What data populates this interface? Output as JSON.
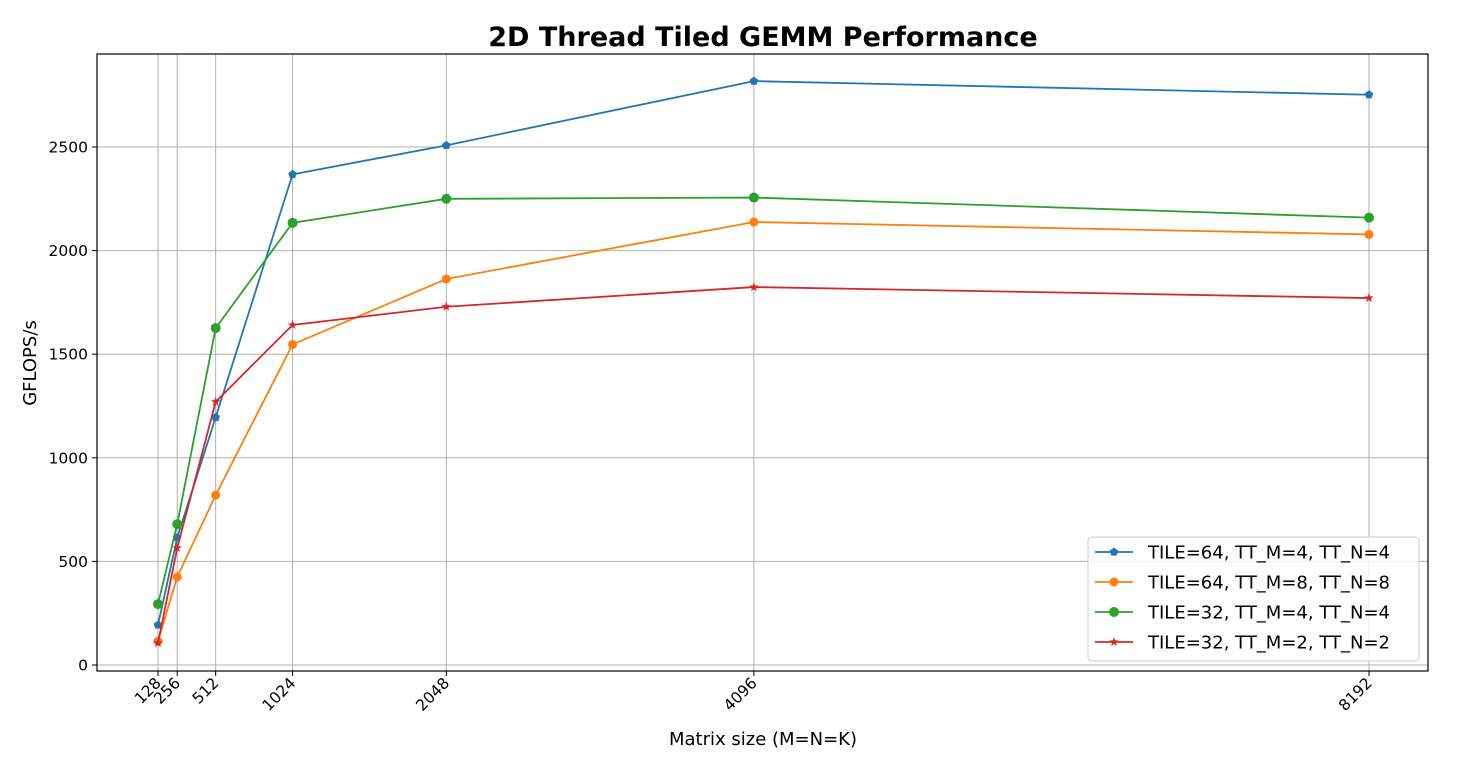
{
  "chart_data": {
    "type": "line",
    "title": "2D Thread Tiled GEMM Performance",
    "xlabel": "Matrix size (M=N=K)",
    "ylabel": "GFLOPS/s",
    "x": [
      128,
      256,
      512,
      1024,
      2048,
      4096,
      8192
    ],
    "x_tick_labels": [
      "128",
      "256",
      "512",
      "1024",
      "2048",
      "4096",
      "8192"
    ],
    "y_ticks": [
      0,
      500,
      1000,
      1500,
      2000,
      2500
    ],
    "y_tick_labels": [
      "0",
      "500",
      "1000",
      "1500",
      "2000",
      "2500"
    ],
    "xlim": [
      -200,
      8584
    ],
    "ylim": [
      -30,
      2950
    ],
    "grid": true,
    "legend_position": "lower right",
    "series": [
      {
        "name": "TILE=64, TT_M=4, TT_N=4",
        "color": "#1f77b4",
        "marker": "pentagon",
        "values": [
          193,
          615,
          1195,
          2368,
          2508,
          2818,
          2752
        ]
      },
      {
        "name": "TILE=64, TT_M=8, TT_N=8",
        "color": "#ff7f0e",
        "marker": "octagon",
        "values": [
          115,
          425,
          820,
          1547,
          1863,
          2138,
          2078
        ]
      },
      {
        "name": "TILE=32, TT_M=4, TT_N=4",
        "color": "#2ca02c",
        "marker": "circle",
        "values": [
          294,
          680,
          1626,
          2134,
          2250,
          2256,
          2159
        ]
      },
      {
        "name": "TILE=32, TT_M=2, TT_N=2",
        "color": "#d62728",
        "marker": "star",
        "values": [
          106,
          565,
          1270,
          1641,
          1729,
          1824,
          1771
        ]
      }
    ]
  }
}
